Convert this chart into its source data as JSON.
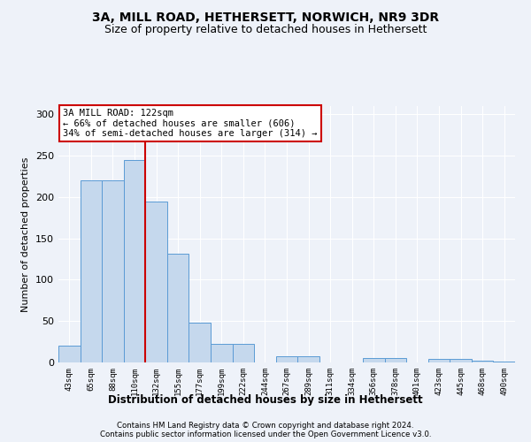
{
  "title": "3A, MILL ROAD, HETHERSETT, NORWICH, NR9 3DR",
  "subtitle": "Size of property relative to detached houses in Hethersett",
  "xlabel": "Distribution of detached houses by size in Hethersett",
  "ylabel": "Number of detached properties",
  "footer_line1": "Contains HM Land Registry data © Crown copyright and database right 2024.",
  "footer_line2": "Contains public sector information licensed under the Open Government Licence v3.0.",
  "bin_labels": [
    "43sqm",
    "65sqm",
    "88sqm",
    "110sqm",
    "132sqm",
    "155sqm",
    "177sqm",
    "199sqm",
    "222sqm",
    "244sqm",
    "267sqm",
    "289sqm",
    "311sqm",
    "334sqm",
    "356sqm",
    "378sqm",
    "401sqm",
    "423sqm",
    "445sqm",
    "468sqm",
    "490sqm"
  ],
  "bar_values": [
    20,
    220,
    220,
    245,
    195,
    132,
    48,
    22,
    22,
    0,
    7,
    7,
    0,
    0,
    5,
    5,
    0,
    4,
    4,
    2,
    1
  ],
  "bar_color": "#c5d8ed",
  "bar_edge_color": "#5b9bd5",
  "property_bin_index": 4,
  "annotation_text": "3A MILL ROAD: 122sqm\n← 66% of detached houses are smaller (606)\n34% of semi-detached houses are larger (314) →",
  "vline_color": "#cc0000",
  "annotation_box_color": "#ffffff",
  "annotation_box_edge": "#cc0000",
  "ylim": [
    0,
    310
  ],
  "background_color": "#eef2f9",
  "grid_color": "#ffffff",
  "title_fontsize": 10,
  "subtitle_fontsize": 9
}
